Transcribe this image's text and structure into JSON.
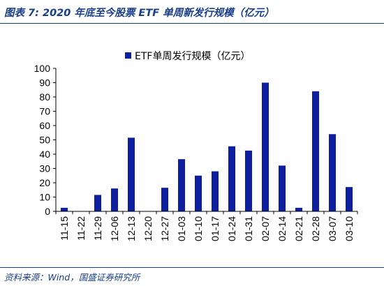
{
  "figure": {
    "title": "图表 7:  2020 年底至今股票 ETF 单周新发行规模（亿元）",
    "source": "资料来源：Wind，国盛证券研究所"
  },
  "chart_data": {
    "type": "bar",
    "categories": [
      "11-15",
      "11-22",
      "11-29",
      "12-06",
      "12-13",
      "12-20",
      "12-27",
      "01-03",
      "01-10",
      "01-17",
      "01-24",
      "01-31",
      "02-07",
      "02-14",
      "02-21",
      "02-28",
      "03-07",
      "03-10"
    ],
    "series": [
      {
        "name": "ETF单周发行规模（亿元）",
        "values": [
          2.5,
          0,
          11.5,
          16,
          51.5,
          0,
          16.5,
          36.5,
          25,
          28,
          45.5,
          42.5,
          90,
          32,
          2.5,
          84,
          54,
          17
        ],
        "color": "#0d1fa0"
      }
    ],
    "ylim": [
      0,
      100
    ],
    "yticks": [
      0,
      10,
      20,
      30,
      40,
      50,
      60,
      70,
      80,
      90,
      100
    ],
    "grid": false,
    "legend": "top-center",
    "xlabel": "",
    "ylabel": ""
  }
}
